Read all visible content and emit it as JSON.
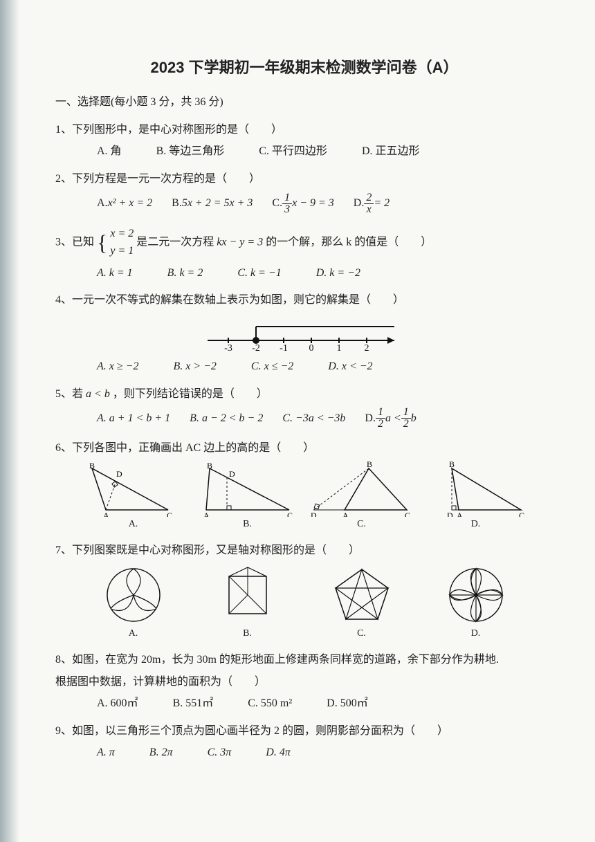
{
  "title": "2023 下学期初一年级期末检测数学问卷（A）",
  "section1": "一、选择题(每小题 3 分，共 36 分)",
  "q1": {
    "stem": "1、下列图形中，是中心对称图形的是（　　）",
    "A": "A.  角",
    "B": "B.  等边三角形",
    "C": "C.  平行四边形",
    "D": "D.  正五边形"
  },
  "q2": {
    "stem": "2、下列方程是一元一次方程的是（　　）",
    "A_pre": "A.  ",
    "A_math": "x² + x = 2",
    "B_pre": "B.  ",
    "B_math": "5x + 2 = 5x + 3",
    "C_pre": "C. ",
    "C_num": "1",
    "C_den": "3",
    "C_tail": "x − 9 = 3",
    "D_pre": "D. ",
    "D_num": "2",
    "D_den": "x",
    "D_tail": " = 2"
  },
  "q3": {
    "stem_pre": "3、已知 ",
    "eq1": "x = 2",
    "eq2": "y = 1",
    "stem_mid": " 是二元一次方程 ",
    "eq_main": "kx − y = 3",
    "stem_post": " 的一个解，那么 k 的值是（　　）",
    "A": "A.  k = 1",
    "B": "B.  k = 2",
    "C": "C.  k = −1",
    "D": "D.  k = −2"
  },
  "q4": {
    "stem": "4、一元一次不等式的解集在数轴上表示为如图，则它的解集是（　　）",
    "ticks": [
      "-3",
      "-2",
      "-1",
      "0",
      "1",
      "2"
    ],
    "A": "A.  x ≥ −2",
    "B": "B.  x > −2",
    "C": "C.  x ≤ −2",
    "D": "D.  x < −2"
  },
  "q5": {
    "stem_pre": "5、若 ",
    "ineq": "a < b",
    "stem_post": "，则下列结论错误的是（　　）",
    "A": "A.  a + 1 < b + 1",
    "B": "B.  a − 2 < b − 2",
    "C": "C.  −3a < −3b",
    "D_pre": "D.  ",
    "D_num1": "1",
    "D_den1": "2",
    "D_mid": "a < ",
    "D_num2": "1",
    "D_den2": "2",
    "D_tail": "b"
  },
  "q6": {
    "stem": "6、下列各图中，正确画出 AC 边上的高的是（　　）",
    "A": "A.",
    "B": "B.",
    "C": "C.",
    "D": "D."
  },
  "q7": {
    "stem": "7、下列图案既是中心对称图形，又是轴对称图形的是（　　）",
    "A": "A.",
    "B": "B.",
    "C": "C.",
    "D": "D."
  },
  "q8": {
    "stem1": "8、如图，在宽为 20m，长为 30m 的矩形地面上修建两条同样宽的道路，余下部分作为耕地.",
    "stem2": "根据图中数据，计算耕地的面积为（　　）",
    "A": "A.  600㎡",
    "B": "B.  551㎡",
    "C": "C.  550 m²",
    "D": "D.  500㎡"
  },
  "q9": {
    "stem": "9、如图，以三角形三个顶点为圆心画半径为 2 的圆，则阴影部分面积为（　　）",
    "A": "A.  π",
    "B": "B.  2π",
    "C": "C.  3π",
    "D": "D.  4π"
  },
  "colors": {
    "text": "#222222",
    "stroke": "#111111",
    "background": "#f8f8f5"
  }
}
